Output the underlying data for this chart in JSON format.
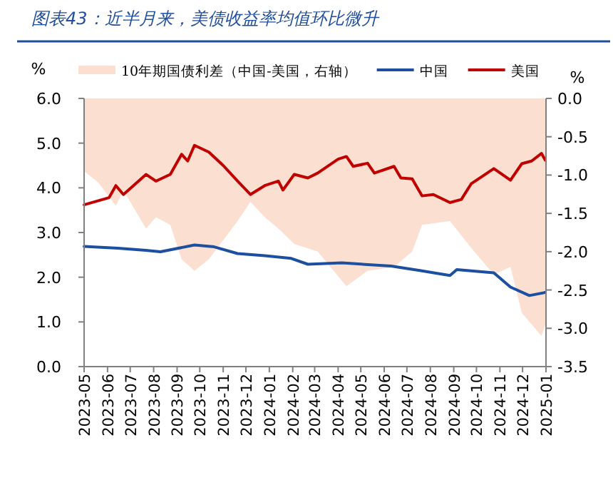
{
  "chart_data": {
    "type": "line",
    "title": "图表43：近半月来，美债收益率均值环比微升",
    "ylabel": "%",
    "y2label": "%",
    "legend": "top",
    "xlim": [
      "2023-05-01",
      "2025-01-01"
    ],
    "xticks": [
      "2023-05",
      "2023-06",
      "2023-07",
      "2023-08",
      "2023-09",
      "2023-10",
      "2023-11",
      "2023-12",
      "2024-01",
      "2024-02",
      "2024-03",
      "2024-04",
      "2024-05",
      "2024-06",
      "2024-07",
      "2024-08",
      "2024-09",
      "2024-10",
      "2024-11",
      "2024-12",
      "2025-01"
    ],
    "ylim": [
      0,
      6
    ],
    "yticks": [
      {
        "value": 0,
        "label": "0.0"
      },
      {
        "value": 1,
        "label": "1.0"
      },
      {
        "value": 2,
        "label": "2.0"
      },
      {
        "value": 3,
        "label": "3.0"
      },
      {
        "value": 4,
        "label": "4.0"
      },
      {
        "value": 5,
        "label": "5.0"
      },
      {
        "value": 6,
        "label": "6.0"
      }
    ],
    "y2lim": [
      -3.5,
      0
    ],
    "y2ticks": [
      {
        "value": 0,
        "label": "0.0"
      },
      {
        "value": -0.5,
        "label": "-0.5"
      },
      {
        "value": -1,
        "label": "-1.0"
      },
      {
        "value": -1.5,
        "label": "-1.5"
      },
      {
        "value": -2,
        "label": "-2.0"
      },
      {
        "value": -2.5,
        "label": "-2.5"
      },
      {
        "value": -3,
        "label": "-3.0"
      },
      {
        "value": -3.5,
        "label": "-3.5"
      }
    ],
    "series": [
      {
        "name": "10年期国债利差（中国-美国，右轴）",
        "type": "area",
        "axis": "y2",
        "color": "#fbe0d2",
        "x": [
          "2023-05-01",
          "2023-05-20",
          "2023-06-12",
          "2023-06-22",
          "2023-07-22",
          "2023-08-04",
          "2023-08-23",
          "2023-09-07",
          "2023-09-24",
          "2023-10-13",
          "2023-11-01",
          "2023-11-20",
          "2023-12-07",
          "2023-12-26",
          "2024-01-13",
          "2024-02-03",
          "2024-03-05",
          "2024-04-12",
          "2024-05-10",
          "2024-06-14",
          "2024-07-08",
          "2024-07-21",
          "2024-08-27",
          "2024-09-24",
          "2024-10-24",
          "2024-11-15",
          "2024-11-30",
          "2024-12-26",
          "2024-12-31"
        ],
        "values": [
          -0.95,
          -1.1,
          -1.4,
          -1.2,
          -1.7,
          -1.55,
          -1.65,
          -2.1,
          -2.25,
          -2.1,
          -1.85,
          -1.6,
          -1.35,
          -1.55,
          -1.7,
          -1.9,
          -2.0,
          -2.45,
          -2.25,
          -2.2,
          -2.0,
          -1.65,
          -1.6,
          -1.95,
          -2.3,
          -2.2,
          -2.8,
          -3.1,
          -2.95
        ]
      },
      {
        "name": "中国",
        "color": "#1c4fa0",
        "x": [
          "2023-05-01",
          "2023-06-15",
          "2023-07-22",
          "2023-08-10",
          "2023-09-24",
          "2023-10-20",
          "2023-11-20",
          "2023-12-26",
          "2024-01-30",
          "2024-02-21",
          "2024-04-06",
          "2024-06-10",
          "2024-07-18",
          "2024-08-27",
          "2024-09-05",
          "2024-10-24",
          "2024-11-15",
          "2024-12-10",
          "2024-12-31"
        ],
        "values": [
          2.69,
          2.65,
          2.6,
          2.57,
          2.72,
          2.68,
          2.53,
          2.48,
          2.42,
          2.29,
          2.32,
          2.25,
          2.15,
          2.04,
          2.17,
          2.1,
          1.78,
          1.59,
          1.66
        ]
      },
      {
        "name": "美国",
        "color": "#c00000",
        "x": [
          "2023-05-01",
          "2023-06-03",
          "2023-06-12",
          "2023-06-22",
          "2023-07-22",
          "2023-08-04",
          "2023-08-23",
          "2023-09-07",
          "2023-09-15",
          "2023-09-24",
          "2023-10-13",
          "2023-11-01",
          "2023-11-20",
          "2023-12-07",
          "2023-12-26",
          "2024-01-13",
          "2024-01-19",
          "2024-02-03",
          "2024-02-21",
          "2024-03-05",
          "2024-04-01",
          "2024-04-12",
          "2024-04-21",
          "2024-05-10",
          "2024-05-19",
          "2024-06-14",
          "2024-06-23",
          "2024-07-08",
          "2024-07-21",
          "2024-08-05",
          "2024-08-27",
          "2024-09-11",
          "2024-09-24",
          "2024-10-24",
          "2024-11-15",
          "2024-11-30",
          "2024-12-13",
          "2024-12-26",
          "2024-12-31"
        ],
        "values": [
          3.62,
          3.78,
          4.05,
          3.85,
          4.3,
          4.15,
          4.3,
          4.75,
          4.6,
          4.95,
          4.8,
          4.5,
          4.15,
          3.85,
          4.05,
          4.15,
          3.95,
          4.3,
          4.22,
          4.33,
          4.64,
          4.7,
          4.48,
          4.55,
          4.33,
          4.48,
          4.22,
          4.2,
          3.82,
          3.85,
          3.67,
          3.74,
          4.09,
          4.43,
          4.17,
          4.54,
          4.6,
          4.77,
          4.62
        ]
      }
    ]
  }
}
